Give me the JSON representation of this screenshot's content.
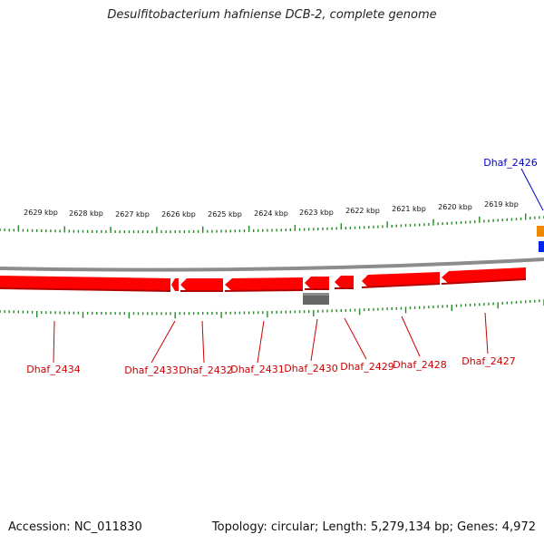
{
  "title": "Desulfitobacterium hafniense DCB-2, complete genome",
  "footer": {
    "accession": "Accession: NC_011830",
    "stats": "Topology: circular; Length: 5,279,134 bp; Genes: 4,972"
  },
  "colors": {
    "gene_forward": "#ff0000",
    "gene_label": "#cc0000",
    "highlight_label": "#0000cc",
    "ruler_ticks": "#228b22",
    "backbone": "#8c8c8c",
    "rna": "#666666",
    "orange_feature": "#ee8800",
    "blue_feature": "#0022ee"
  },
  "kbp_labels": [
    "2629 kbp",
    "2628 kbp",
    "2627 kbp",
    "2626 kbp",
    "2625 kbp",
    "2624 kbp",
    "2623 kbp",
    "2622 kbp",
    "2621 kbp",
    "2620 kbp",
    "2619 kbp"
  ],
  "genes": [
    {
      "label": "Dhaf_2434"
    },
    {
      "label": "Dhaf_2433"
    },
    {
      "label": "Dhaf_2432"
    },
    {
      "label": "Dhaf_2431"
    },
    {
      "label": "Dhaf_2430"
    },
    {
      "label": "Dhaf_2429"
    },
    {
      "label": "Dhaf_2428"
    },
    {
      "label": "Dhaf_2427"
    }
  ],
  "highlight_gene": {
    "label": "Dhaf_2426"
  }
}
